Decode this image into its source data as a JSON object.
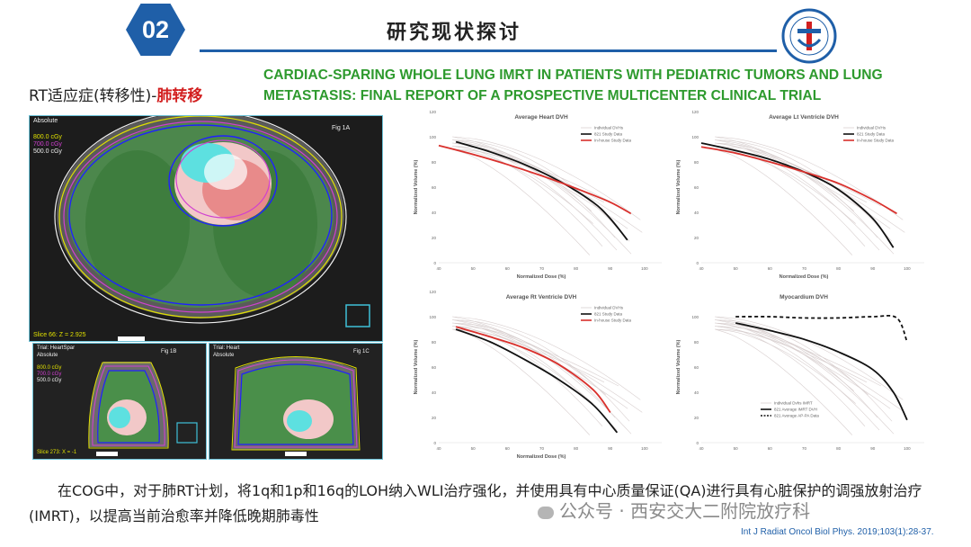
{
  "header": {
    "badge_number": "02",
    "title": "研究现状探讨"
  },
  "subtitle": {
    "prefix": "RT适应症(转移性)-",
    "highlight": "肺转移"
  },
  "paper_title": "CARDIAC-SPARING WHOLE LUNG IMRT IN PATIENTS WITH PEDIATRIC TUMORS AND LUNG METASTASIS: FINAL REPORT OF A PROSPECTIVE MULTICENTER CLINICAL TRIAL",
  "ct_images": {
    "main": {
      "label": "Fig 1A",
      "absolute": "Absolute",
      "doses": [
        "800.0 cGy",
        "700.0 cGy",
        "500.0 cGy"
      ],
      "slice": "Slice 66: Z = 2.925"
    },
    "b": {
      "label": "Fig 1B",
      "trial": "Trial: HeartSpar",
      "absolute": "Absolute",
      "doses": [
        "800.0 cGy",
        "700.0 cGy",
        "500.0 cGy"
      ],
      "slice": "Slice 273: X = -1"
    },
    "c": {
      "label": "Fig 1C",
      "trial": "Trial: Heart",
      "absolute": "Absolute"
    }
  },
  "colors": {
    "badge": "#1f5fa8",
    "accent_red": "#d21f1f",
    "title_green": "#2e9a2e",
    "black_curve": "#111111",
    "red_curve": "#d9302c",
    "grey_curve": "#d8cfcf"
  },
  "chart_data": [
    {
      "type": "line",
      "title": "Average Heart DVH",
      "xlabel": "Normalized Dose (%)",
      "ylabel": "Normalized Volume (%)",
      "xlim": [
        40,
        105
      ],
      "ylim": [
        0,
        120
      ],
      "xticks": [
        40,
        50,
        60,
        70,
        80,
        90,
        100
      ],
      "yticks": [
        0,
        20,
        40,
        60,
        80,
        100,
        120
      ],
      "legend": [
        "Individual DVHs",
        "821 Study Data",
        "In-house Study Data"
      ],
      "series": [
        {
          "name": "821 Study Data",
          "x": [
            45,
            55,
            65,
            75,
            85,
            90,
            95
          ],
          "y": [
            96,
            88,
            78,
            65,
            48,
            35,
            18
          ]
        },
        {
          "name": "In-house Study Data",
          "x": [
            40,
            50,
            60,
            70,
            80,
            90,
            96
          ],
          "y": [
            93,
            86,
            78,
            69,
            59,
            48,
            39
          ]
        }
      ]
    },
    {
      "type": "line",
      "title": "Average Lt Ventricle DVH",
      "xlabel": "Normalized Dose (%)",
      "ylabel": "Normalized Volume (%)",
      "xlim": [
        40,
        105
      ],
      "ylim": [
        0,
        120
      ],
      "xticks": [
        40,
        50,
        60,
        70,
        80,
        90,
        100
      ],
      "yticks": [
        0,
        20,
        40,
        60,
        80,
        100,
        120
      ],
      "legend": [
        "Individual DVHs",
        "821 Study Data",
        "In-house Study Data"
      ],
      "series": [
        {
          "name": "821 Study Data",
          "x": [
            40,
            50,
            60,
            70,
            80,
            90,
            96
          ],
          "y": [
            95,
            89,
            82,
            72,
            58,
            35,
            12
          ]
        },
        {
          "name": "In-house Study Data",
          "x": [
            40,
            50,
            60,
            70,
            80,
            90,
            97
          ],
          "y": [
            92,
            87,
            80,
            72,
            63,
            50,
            39
          ]
        }
      ]
    },
    {
      "type": "line",
      "title": "Average Rt Ventricle DVH",
      "xlabel": "Normalized Dose (%)",
      "ylabel": "Normalized Volume (%)",
      "xlim": [
        40,
        105
      ],
      "ylim": [
        0,
        120
      ],
      "xticks": [
        40,
        50,
        60,
        70,
        80,
        90,
        100
      ],
      "yticks": [
        0,
        20,
        40,
        60,
        80,
        100,
        120
      ],
      "legend": [
        "Individual DVHs",
        "821 Study Data",
        "In-house Study Data"
      ],
      "series": [
        {
          "name": "821 Study Data",
          "x": [
            45,
            55,
            65,
            75,
            85,
            92
          ],
          "y": [
            90,
            80,
            66,
            50,
            30,
            8
          ]
        },
        {
          "name": "In-house Study Data",
          "x": [
            45,
            55,
            65,
            75,
            85,
            90
          ],
          "y": [
            92,
            84,
            75,
            62,
            42,
            24
          ]
        }
      ]
    },
    {
      "type": "line",
      "title": "Myocardium DVH",
      "xlabel": "",
      "ylabel": "Normalized Volume (%)",
      "xlim": [
        40,
        105
      ],
      "ylim": [
        0,
        120
      ],
      "xticks": [
        40,
        50,
        60,
        70,
        80,
        90,
        100
      ],
      "yticks": [
        0,
        20,
        40,
        60,
        80,
        100
      ],
      "legend": [
        "Individual Dvhs IMRT",
        "821 Average IMRT DVH",
        "821 Average AP-PA Data"
      ],
      "series": [
        {
          "name": "821 Average IMRT DVH",
          "x": [
            50,
            60,
            70,
            80,
            90,
            96,
            100
          ],
          "y": [
            95,
            89,
            82,
            72,
            58,
            40,
            18
          ]
        },
        {
          "name": "821 Average AP-PA Data",
          "x": [
            50,
            60,
            70,
            80,
            90,
            97,
            100
          ],
          "y": [
            100,
            100,
            99,
            99,
            100,
            99,
            80
          ],
          "dashed": true
        }
      ]
    }
  ],
  "body": "在COG中，对于肺RT计划，将1q和1p和16q的LOH纳入WLI治疗强化，并使用具有中心质量保证(QA)进行具有心脏保护的调强放射治疗(IMRT)，以提高当前治愈率并降低晚期肺毒性",
  "watermark": "公众号 · 西安交大二附院放疗科",
  "citation": "Int J Radiat Oncol Biol Phys. 2019;103(1):28-37."
}
